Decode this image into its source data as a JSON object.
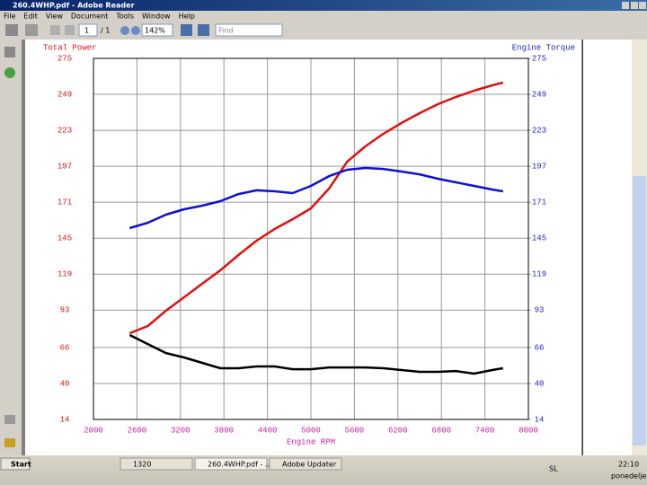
{
  "window": {
    "title": "260.4WHP.pdf - Adobe Reader"
  },
  "menu": [
    "File",
    "Edit",
    "View",
    "Document",
    "Tools",
    "Window",
    "Help"
  ],
  "toolbar": {
    "page": "1",
    "pages": "/ 1",
    "zoom": "142%",
    "find": "Find"
  },
  "taskbar": {
    "start": "Start",
    "tasks": [
      "1320",
      "260.4WHP.pdf - ...",
      "Adobe Updater"
    ],
    "tray": "SL",
    "clock": "22:10",
    "day": "ponedeljek"
  },
  "chart_data": {
    "type": "line",
    "ylabel": "Total Power",
    "y2label": "Engine Torque",
    "xlabel": "Engine RPM",
    "x": [
      2500,
      2750,
      3000,
      3250,
      3500,
      3750,
      4000,
      4250,
      4500,
      4750,
      5000,
      5250,
      5500,
      5750,
      6000,
      6250,
      6500,
      6750,
      7000,
      7250,
      7500,
      7650
    ],
    "xlim": [
      2000,
      8000
    ],
    "xticks": [
      2000,
      2600,
      3200,
      3800,
      4400,
      5000,
      5600,
      6200,
      6800,
      7400,
      8000
    ],
    "ylim": [
      14,
      275
    ],
    "yticks": [
      14,
      40,
      66,
      93,
      119,
      145,
      171,
      197,
      223,
      249,
      275
    ],
    "y2lim": [
      14,
      275
    ],
    "y2ticks": [
      14,
      40,
      66,
      93,
      119,
      145,
      171,
      197,
      223,
      249,
      275
    ],
    "grid": true,
    "series": [
      {
        "color": "#e01010",
        "values": [
          76.3,
          81.5,
          92.6,
          102.3,
          112.1,
          121.8,
          132.8,
          143.2,
          151.7,
          158.8,
          166.6,
          180.9,
          200.3,
          211.4,
          220.5,
          228.3,
          235.4,
          241.9,
          247.1,
          251.6,
          255.5,
          257.5
        ]
      },
      {
        "color": "#1010d0",
        "axis": "y2",
        "values": [
          152.3,
          156.2,
          162.0,
          165.9,
          168.5,
          171.8,
          176.9,
          179.6,
          178.9,
          177.6,
          182.8,
          189.9,
          194.5,
          195.8,
          195.1,
          193.2,
          191.2,
          188.0,
          185.4,
          182.8,
          180.2,
          178.9
        ]
      },
      {
        "color": "#000000",
        "values": [
          75.0,
          68.5,
          62.0,
          58.8,
          54.9,
          51.0,
          51.0,
          52.3,
          52.3,
          50.3,
          50.3,
          51.6,
          51.6,
          51.6,
          51.0,
          49.7,
          48.4,
          48.4,
          49.0,
          47.1,
          49.7,
          51.0
        ]
      }
    ]
  }
}
